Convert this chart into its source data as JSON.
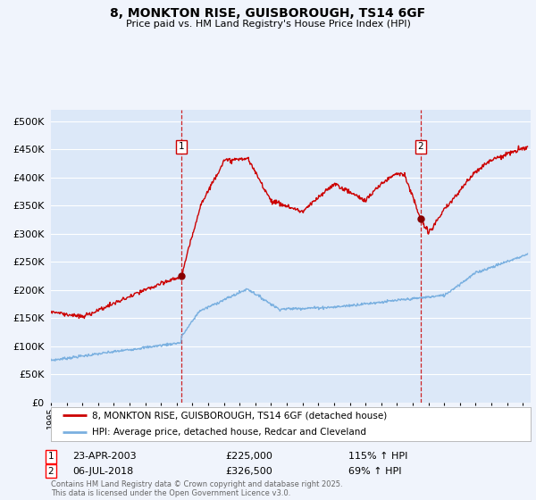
{
  "title": "8, MONKTON RISE, GUISBOROUGH, TS14 6GF",
  "subtitle": "Price paid vs. HM Land Registry's House Price Index (HPI)",
  "hpi_label": "HPI: Average price, detached house, Redcar and Cleveland",
  "property_label": "8, MONKTON RISE, GUISBOROUGH, TS14 6GF (detached house)",
  "transaction1": {
    "date": "23-APR-2003",
    "price": 225000,
    "hpi_pct": "115% ↑ HPI",
    "year": 2003.3
  },
  "transaction2": {
    "date": "06-JUL-2018",
    "price": 326500,
    "hpi_pct": "69% ↑ HPI",
    "year": 2018.5
  },
  "xmin": 1995,
  "xmax": 2025.5,
  "ymin": 0,
  "ymax": 520000,
  "yticks": [
    0,
    50000,
    100000,
    150000,
    200000,
    250000,
    300000,
    350000,
    400000,
    450000,
    500000
  ],
  "background_color": "#f0f4fc",
  "plot_bg_color": "#dce8f8",
  "grid_color": "#ffffff",
  "property_color": "#cc0000",
  "hpi_color": "#7ab0e0",
  "vline_color": "#cc0000",
  "footer": "Contains HM Land Registry data © Crown copyright and database right 2025.\nThis data is licensed under the Open Government Licence v3.0.",
  "legend_box_color": "#ffffff",
  "marker1_year": 2003.3,
  "marker1_price": 225000,
  "marker2_year": 2018.5,
  "marker2_price": 326500
}
